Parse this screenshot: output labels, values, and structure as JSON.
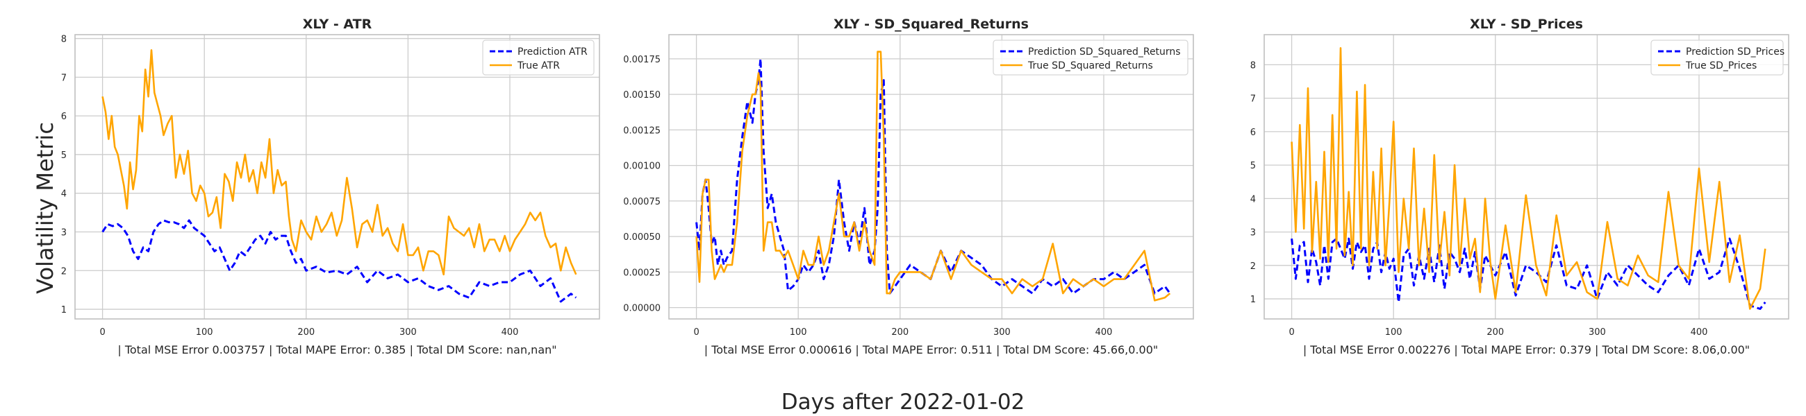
{
  "figure": {
    "ylabel": "Volatility Metric",
    "xlabel": "Days after 2022-01-02"
  },
  "chart_data": [
    {
      "type": "line",
      "title": "XLY - ATR",
      "xlabel": "| Total MSE Error 0.003757 | Total MAPE Error: 0.385 | Total DM Score: nan,nan\"",
      "xlim": [
        -27,
        488
      ],
      "ylim": [
        0.75,
        8.1
      ],
      "xticks": [
        0,
        100,
        200,
        300,
        400
      ],
      "yticks": [
        1,
        2,
        3,
        4,
        5,
        6,
        7,
        8
      ],
      "ytick_labels": [
        "1",
        "2",
        "3",
        "4",
        "5",
        "6",
        "7",
        "8"
      ],
      "grid": true,
      "legend": "top-right",
      "series": [
        {
          "name": "Prediction ATR",
          "style": "dashed",
          "color": "#0000ff",
          "x": [
            0,
            5,
            10,
            15,
            20,
            25,
            30,
            35,
            40,
            45,
            50,
            55,
            60,
            65,
            70,
            75,
            80,
            85,
            90,
            95,
            100,
            105,
            110,
            115,
            120,
            125,
            130,
            135,
            140,
            145,
            150,
            155,
            160,
            165,
            170,
            175,
            180,
            185,
            190,
            195,
            200,
            210,
            220,
            230,
            240,
            250,
            260,
            270,
            280,
            290,
            300,
            310,
            320,
            330,
            340,
            350,
            360,
            370,
            380,
            390,
            400,
            410,
            420,
            430,
            440,
            450,
            460,
            465
          ],
          "y": [
            3.0,
            3.2,
            3.15,
            3.2,
            3.1,
            2.9,
            2.5,
            2.3,
            2.6,
            2.5,
            3.0,
            3.2,
            3.3,
            3.25,
            3.25,
            3.2,
            3.1,
            3.3,
            3.1,
            3.0,
            2.9,
            2.7,
            2.5,
            2.6,
            2.3,
            2.0,
            2.2,
            2.5,
            2.4,
            2.6,
            2.8,
            2.9,
            2.7,
            3.0,
            2.8,
            2.9,
            2.9,
            2.5,
            2.2,
            2.3,
            2.0,
            2.1,
            1.95,
            2.0,
            1.9,
            2.1,
            1.7,
            2.0,
            1.8,
            1.9,
            1.7,
            1.8,
            1.6,
            1.5,
            1.6,
            1.4,
            1.3,
            1.7,
            1.6,
            1.7,
            1.7,
            1.9,
            2.0,
            1.6,
            1.8,
            1.2,
            1.4,
            1.3
          ]
        },
        {
          "name": "True ATR",
          "style": "solid",
          "color": "#ffa500",
          "x": [
            0,
            3,
            6,
            9,
            12,
            15,
            18,
            21,
            24,
            27,
            30,
            33,
            36,
            39,
            42,
            45,
            48,
            51,
            54,
            57,
            60,
            64,
            68,
            72,
            76,
            80,
            84,
            88,
            92,
            96,
            100,
            104,
            108,
            112,
            116,
            120,
            124,
            128,
            132,
            136,
            140,
            144,
            148,
            152,
            156,
            160,
            164,
            168,
            172,
            176,
            180,
            183,
            186,
            190,
            195,
            200,
            205,
            210,
            215,
            220,
            225,
            230,
            235,
            240,
            245,
            250,
            255,
            260,
            265,
            270,
            275,
            280,
            285,
            290,
            295,
            300,
            305,
            310,
            315,
            320,
            325,
            330,
            335,
            340,
            345,
            350,
            355,
            360,
            365,
            370,
            375,
            380,
            385,
            390,
            395,
            400,
            405,
            410,
            415,
            420,
            425,
            430,
            435,
            440,
            445,
            450,
            455,
            460,
            465
          ],
          "y": [
            6.5,
            6.1,
            5.4,
            6.0,
            5.2,
            5.0,
            4.6,
            4.2,
            3.6,
            4.8,
            4.1,
            4.6,
            6.0,
            5.6,
            7.2,
            6.5,
            7.7,
            6.6,
            6.3,
            6.0,
            5.5,
            5.8,
            6.0,
            4.4,
            5.0,
            4.5,
            5.1,
            4.0,
            3.8,
            4.2,
            4.0,
            3.4,
            3.5,
            3.9,
            3.1,
            4.5,
            4.3,
            3.8,
            4.8,
            4.4,
            5.0,
            4.3,
            4.6,
            4.0,
            4.8,
            4.4,
            5.4,
            4.0,
            4.6,
            4.2,
            4.3,
            3.4,
            2.8,
            2.5,
            3.3,
            3.0,
            2.8,
            3.4,
            3.0,
            3.2,
            3.5,
            2.9,
            3.3,
            4.4,
            3.6,
            2.6,
            3.2,
            3.3,
            3.0,
            3.7,
            2.9,
            3.1,
            2.7,
            2.5,
            3.2,
            2.4,
            2.4,
            2.6,
            2.0,
            2.5,
            2.5,
            2.4,
            1.9,
            3.4,
            3.1,
            3.0,
            2.9,
            3.1,
            2.6,
            3.2,
            2.5,
            2.8,
            2.8,
            2.5,
            2.9,
            2.5,
            2.8,
            3.0,
            3.2,
            3.5,
            3.3,
            3.5,
            2.9,
            2.6,
            2.7,
            2.0,
            2.6,
            2.2,
            1.9
          ]
        }
      ]
    },
    {
      "type": "line",
      "title": "XLY - SD_Squared_Returns",
      "xlabel": "| Total MSE Error 0.000616 | Total MAPE Error: 0.511 | Total DM Score: 45.66,0.00\"",
      "xlim": [
        -27,
        488
      ],
      "ylim": [
        -8e-05,
        0.00192
      ],
      "xticks": [
        0,
        100,
        200,
        300,
        400
      ],
      "yticks": [
        0,
        0.00025,
        0.0005,
        0.00075,
        0.001,
        0.00125,
        0.0015,
        0.00175
      ],
      "ytick_labels": [
        "0.00000",
        "0.00025",
        "0.00050",
        "0.00075",
        "0.00100",
        "0.00125",
        "0.00150",
        "0.00175"
      ],
      "grid": true,
      "legend": "top-right",
      "series": [
        {
          "name": "Prediction SD_Squared_Returns",
          "style": "dashed",
          "color": "#0000ff",
          "x": [
            0,
            3,
            6,
            9,
            12,
            15,
            18,
            21,
            24,
            27,
            30,
            35,
            40,
            45,
            50,
            55,
            58,
            61,
            63,
            66,
            70,
            74,
            78,
            82,
            86,
            90,
            95,
            100,
            105,
            110,
            115,
            120,
            125,
            130,
            135,
            140,
            145,
            150,
            155,
            160,
            165,
            170,
            175,
            178,
            181,
            184,
            187,
            190,
            195,
            200,
            210,
            220,
            230,
            240,
            250,
            260,
            270,
            280,
            290,
            300,
            310,
            320,
            330,
            340,
            350,
            360,
            370,
            380,
            390,
            400,
            410,
            420,
            430,
            440,
            450,
            460,
            465
          ],
          "y": [
            0.0006,
            0.0004,
            0.0008,
            0.0009,
            0.0007,
            0.00045,
            0.0005,
            0.0003,
            0.0004,
            0.0003,
            0.00035,
            0.0004,
            0.0009,
            0.0012,
            0.00145,
            0.0013,
            0.0015,
            0.0016,
            0.00175,
            0.0011,
            0.0007,
            0.0008,
            0.0006,
            0.0005,
            0.0004,
            0.00012,
            0.00015,
            0.0002,
            0.0003,
            0.00025,
            0.0003,
            0.0004,
            0.0002,
            0.0003,
            0.0005,
            0.0009,
            0.0006,
            0.0004,
            0.0006,
            0.00045,
            0.0007,
            0.0003,
            0.0004,
            0.0007,
            0.0015,
            0.0016,
            0.0004,
            0.0001,
            0.00015,
            0.0002,
            0.0003,
            0.00025,
            0.0002,
            0.0004,
            0.00025,
            0.0004,
            0.00035,
            0.0003,
            0.0002,
            0.00015,
            0.0002,
            0.00015,
            0.0001,
            0.0002,
            0.00015,
            0.0002,
            0.0001,
            0.00015,
            0.0002,
            0.0002,
            0.00025,
            0.0002,
            0.00025,
            0.0003,
            0.0001,
            0.00015,
            0.0001
          ]
        },
        {
          "name": "True SD_Squared_Returns",
          "style": "solid",
          "color": "#ffa500",
          "x": [
            0,
            3,
            6,
            9,
            12,
            15,
            18,
            21,
            24,
            27,
            30,
            35,
            40,
            45,
            50,
            55,
            58,
            61,
            63,
            66,
            70,
            74,
            78,
            82,
            86,
            90,
            95,
            100,
            105,
            110,
            115,
            120,
            125,
            130,
            135,
            140,
            145,
            150,
            155,
            160,
            165,
            170,
            175,
            178,
            181,
            184,
            187,
            190,
            195,
            200,
            210,
            220,
            230,
            240,
            250,
            260,
            270,
            280,
            290,
            300,
            310,
            320,
            330,
            340,
            350,
            360,
            370,
            380,
            390,
            400,
            410,
            420,
            430,
            440,
            450,
            460,
            465
          ],
          "y": [
            0.0005,
            0.00018,
            0.0008,
            0.0009,
            0.0009,
            0.0004,
            0.0002,
            0.00025,
            0.0003,
            0.00025,
            0.0003,
            0.0003,
            0.0006,
            0.0011,
            0.00135,
            0.0015,
            0.0015,
            0.00165,
            0.00155,
            0.0004,
            0.0006,
            0.0006,
            0.0004,
            0.0004,
            0.00035,
            0.0004,
            0.0003,
            0.0002,
            0.0004,
            0.0003,
            0.0003,
            0.0005,
            0.0003,
            0.0004,
            0.0006,
            0.0008,
            0.0005,
            0.0005,
            0.0006,
            0.0004,
            0.0006,
            0.0004,
            0.0003,
            0.0018,
            0.0018,
            0.0012,
            0.0001,
            0.0001,
            0.0002,
            0.00025,
            0.00025,
            0.00025,
            0.0002,
            0.0004,
            0.0002,
            0.0004,
            0.0003,
            0.00025,
            0.0002,
            0.0002,
            0.0001,
            0.0002,
            0.00015,
            0.0002,
            0.00045,
            0.0001,
            0.0002,
            0.00015,
            0.0002,
            0.00015,
            0.0002,
            0.0002,
            0.0003,
            0.0004,
            5e-05,
            7e-05,
            0.0001
          ]
        }
      ]
    },
    {
      "type": "line",
      "title": "XLY - SD_Prices",
      "xlabel": "| Total MSE Error 0.002276 | Total MAPE Error: 0.379 | Total DM Score: 8.06,0.00\"",
      "xlim": [
        -27,
        488
      ],
      "ylim": [
        0.4,
        8.9
      ],
      "xticks": [
        0,
        100,
        200,
        300,
        400
      ],
      "yticks": [
        1,
        2,
        3,
        4,
        5,
        6,
        7,
        8
      ],
      "ytick_labels": [
        "1",
        "2",
        "3",
        "4",
        "5",
        "6",
        "7",
        "8"
      ],
      "grid": true,
      "legend": "top-right",
      "series": [
        {
          "name": "Prediction SD_Prices",
          "style": "dashed",
          "color": "#0000ff",
          "x": [
            0,
            4,
            8,
            12,
            16,
            20,
            24,
            28,
            32,
            36,
            40,
            44,
            48,
            52,
            56,
            60,
            64,
            68,
            72,
            76,
            80,
            84,
            88,
            92,
            96,
            100,
            105,
            110,
            115,
            120,
            125,
            130,
            135,
            140,
            145,
            150,
            155,
            160,
            165,
            170,
            175,
            180,
            185,
            190,
            195,
            200,
            210,
            220,
            230,
            240,
            250,
            260,
            270,
            280,
            290,
            300,
            310,
            320,
            330,
            340,
            350,
            360,
            370,
            380,
            390,
            400,
            410,
            420,
            430,
            440,
            450,
            460,
            465
          ],
          "y": [
            2.8,
            1.6,
            2.6,
            2.7,
            1.5,
            2.5,
            2.1,
            1.4,
            2.6,
            1.6,
            2.7,
            2.8,
            2.5,
            2.2,
            2.8,
            1.9,
            2.7,
            2.4,
            2.6,
            1.6,
            2.5,
            2.7,
            1.8,
            2.4,
            1.9,
            2.2,
            0.9,
            2.3,
            2.5,
            1.4,
            2.3,
            1.6,
            2.5,
            1.5,
            2.6,
            1.3,
            2.4,
            2.2,
            1.8,
            2.5,
            1.6,
            2.4,
            1.3,
            2.3,
            2.0,
            1.7,
            2.4,
            1.1,
            2.0,
            1.8,
            1.5,
            2.6,
            1.4,
            1.3,
            2.0,
            1.0,
            1.8,
            1.4,
            2.0,
            1.7,
            1.4,
            1.2,
            1.7,
            2.0,
            1.4,
            2.5,
            1.6,
            1.8,
            2.8,
            1.9,
            0.8,
            0.7,
            0.9
          ]
        },
        {
          "name": "True SD_Prices",
          "style": "solid",
          "color": "#ffa500",
          "x": [
            0,
            4,
            8,
            12,
            16,
            20,
            24,
            28,
            32,
            36,
            40,
            44,
            48,
            52,
            56,
            60,
            64,
            68,
            72,
            76,
            80,
            84,
            88,
            92,
            96,
            100,
            105,
            110,
            115,
            120,
            125,
            130,
            135,
            140,
            145,
            150,
            155,
            160,
            165,
            170,
            175,
            180,
            185,
            190,
            195,
            200,
            210,
            220,
            230,
            240,
            250,
            260,
            270,
            280,
            290,
            300,
            310,
            320,
            330,
            340,
            350,
            360,
            370,
            380,
            390,
            400,
            410,
            420,
            430,
            440,
            450,
            460,
            465
          ],
          "y": [
            5.7,
            3.0,
            6.2,
            3.1,
            7.3,
            2.4,
            4.5,
            2.2,
            5.4,
            2.1,
            6.5,
            2.5,
            8.5,
            2.3,
            4.2,
            2.0,
            7.2,
            2.5,
            7.4,
            2.0,
            4.8,
            2.5,
            5.5,
            2.0,
            3.9,
            6.3,
            1.8,
            4.0,
            2.5,
            5.5,
            2.0,
            3.7,
            1.8,
            5.3,
            2.1,
            3.6,
            1.7,
            5.0,
            2.0,
            4.0,
            2.2,
            2.8,
            1.2,
            4.0,
            2.1,
            1.0,
            3.2,
            1.2,
            4.1,
            2.0,
            1.1,
            3.5,
            1.7,
            2.1,
            1.2,
            1.0,
            3.3,
            1.6,
            1.4,
            2.3,
            1.7,
            1.5,
            4.2,
            2.0,
            1.6,
            4.9,
            2.1,
            4.5,
            1.5,
            2.9,
            0.7,
            1.3,
            2.5
          ]
        }
      ]
    }
  ]
}
